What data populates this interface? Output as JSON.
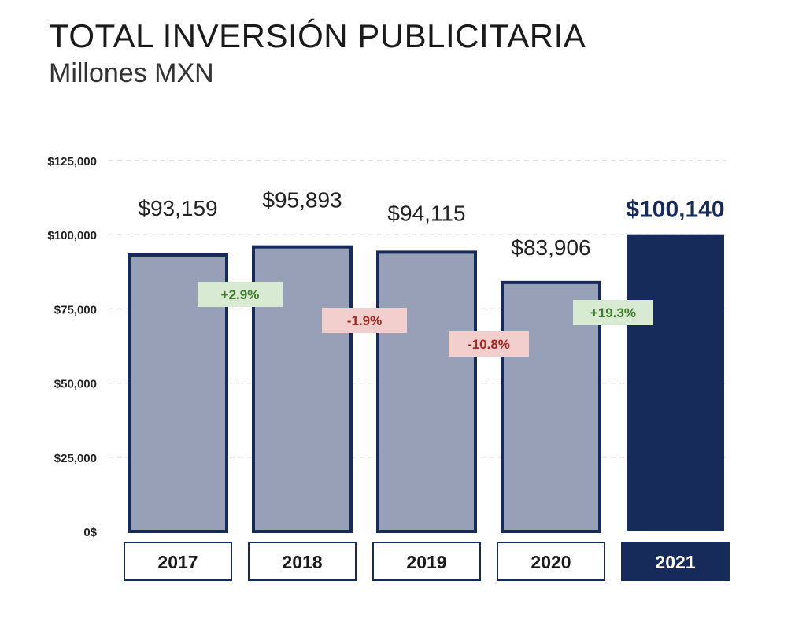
{
  "title": "TOTAL INVERSIÓN PUBLICITARIA",
  "subtitle": "Millones MXN",
  "colors": {
    "bar": "#97a0b7",
    "bar_outline": "#162b5a",
    "highlight": "#162b5a",
    "grid": "#cccccc",
    "pos_bg": "#d9ead3",
    "pos_text": "#3f7a2c",
    "neg_bg": "#f2cfcc",
    "neg_text": "#a02a20"
  },
  "chart_data": {
    "type": "bar",
    "categories": [
      "2017",
      "2018",
      "2019",
      "2020",
      "2021"
    ],
    "values": [
      93159,
      95893,
      94115,
      83906,
      100140
    ],
    "value_labels": [
      "$93,159",
      "$95,893",
      "$94,115",
      "$83,906",
      "$100,140"
    ],
    "highlight_index": 4,
    "ylim": [
      0,
      125000
    ],
    "yticks": [
      0,
      25000,
      50000,
      75000,
      100000,
      125000
    ],
    "ytick_labels": [
      "0$",
      "$25,000",
      "$50,000",
      "$75,000",
      "$100,000",
      "$125,000"
    ],
    "grid": true,
    "changes": [
      {
        "label": "+2.9%",
        "between": [
          0,
          1
        ],
        "sign": "positive",
        "value": 2.9
      },
      {
        "label": "-1.9%",
        "between": [
          1,
          2
        ],
        "sign": "negative",
        "value": -1.9
      },
      {
        "label": "-10.8%",
        "between": [
          2,
          3
        ],
        "sign": "negative",
        "value": -10.8
      },
      {
        "label": "+19.3%",
        "between": [
          3,
          4
        ],
        "sign": "positive",
        "value": 19.3
      }
    ]
  }
}
